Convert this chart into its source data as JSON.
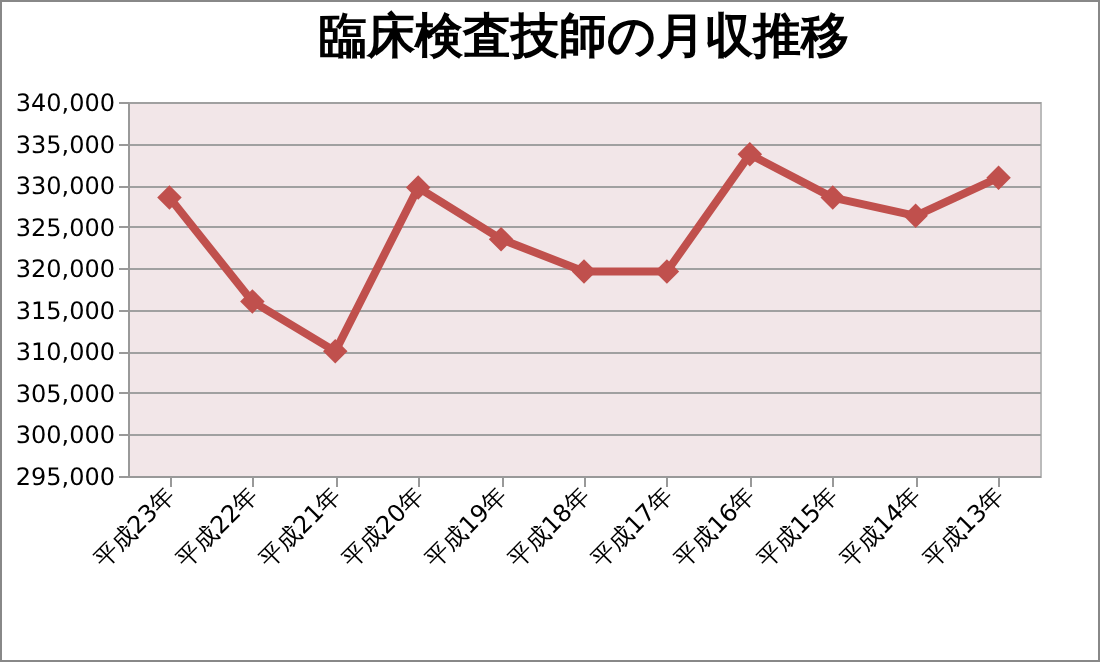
{
  "chart_data": {
    "type": "line",
    "title": "臨床検査技師の月収推移",
    "categories": [
      "平成23年",
      "平成22年",
      "平成21年",
      "平成20年",
      "平成19年",
      "平成18年",
      "平成17年",
      "平成16年",
      "平成15年",
      "平成14年",
      "平成13年"
    ],
    "series": [
      {
        "color": "#c0504d",
        "values": [
          328500,
          316000,
          310000,
          329700,
          323500,
          319600,
          319600,
          333700,
          328500,
          326300,
          330900
        ]
      }
    ],
    "ylim": [
      295000,
      340000
    ],
    "yticks": [
      {
        "value": 295000,
        "label": "295,000"
      },
      {
        "value": 300000,
        "label": "300,000"
      },
      {
        "value": 305000,
        "label": "305,000"
      },
      {
        "value": 310000,
        "label": "310,000"
      },
      {
        "value": 315000,
        "label": "315,000"
      },
      {
        "value": 320000,
        "label": "320,000"
      },
      {
        "value": 325000,
        "label": "325,000"
      },
      {
        "value": 330000,
        "label": "330,000"
      },
      {
        "value": 335000,
        "label": "335,000"
      },
      {
        "value": 340000,
        "label": "340,000"
      }
    ],
    "grid": "y",
    "marker": "diamond",
    "line_style": "solid",
    "legend": false
  }
}
